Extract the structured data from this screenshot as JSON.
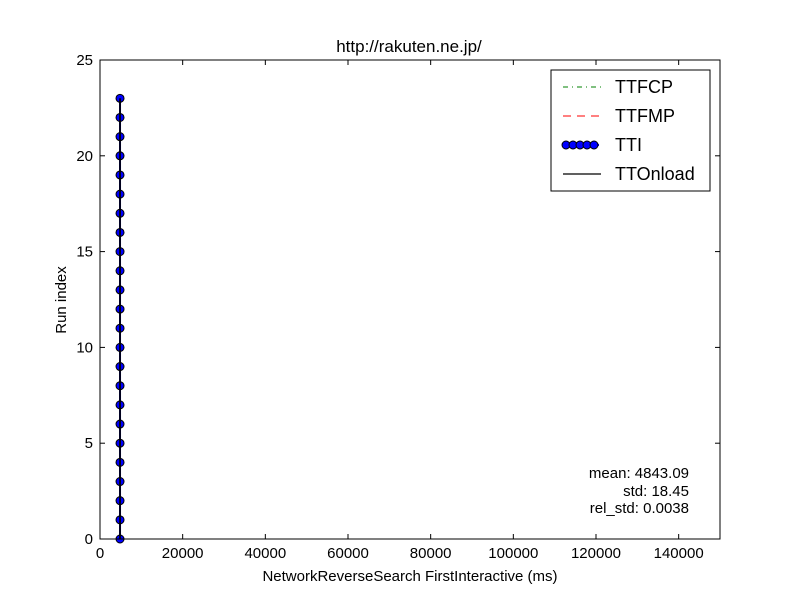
{
  "chart_data": {
    "type": "line",
    "title": "http://rakuten.ne.jp/",
    "xlabel": "NetworkReverseSearch FirstInteractive (ms)",
    "ylabel": "Run index",
    "xlim": [
      0,
      150000
    ],
    "ylim": [
      0,
      25
    ],
    "x_ticks": [
      0,
      20000,
      40000,
      60000,
      80000,
      100000,
      120000,
      140000
    ],
    "y_ticks": [
      0,
      5,
      10,
      15,
      20,
      25
    ],
    "grid": false,
    "legend_position": "top-right",
    "series": [
      {
        "name": "TTFCP",
        "style": "dashdot",
        "color": "#008000",
        "x": [],
        "y": []
      },
      {
        "name": "TTFMP",
        "style": "dashed",
        "color": "#ff0000",
        "x": [],
        "y": []
      },
      {
        "name": "TTI",
        "style": "line-markers",
        "color": "#0000ff",
        "x": [
          4843,
          4843,
          4843,
          4843,
          4843,
          4843,
          4843,
          4843,
          4843,
          4843,
          4843,
          4843,
          4843,
          4843,
          4843,
          4843,
          4843,
          4843,
          4843,
          4843,
          4843,
          4843,
          4843,
          4843
        ],
        "y": [
          0,
          1,
          2,
          3,
          4,
          5,
          6,
          7,
          8,
          9,
          10,
          11,
          12,
          13,
          14,
          15,
          16,
          17,
          18,
          19,
          20,
          21,
          22,
          23
        ]
      },
      {
        "name": "TTOnload",
        "style": "solid",
        "color": "#000000",
        "x": [
          4843,
          4843
        ],
        "y": [
          0,
          23
        ]
      }
    ],
    "annotations": [
      "mean: 4843.09",
      "std: 18.45",
      "rel_std: 0.0038"
    ]
  }
}
